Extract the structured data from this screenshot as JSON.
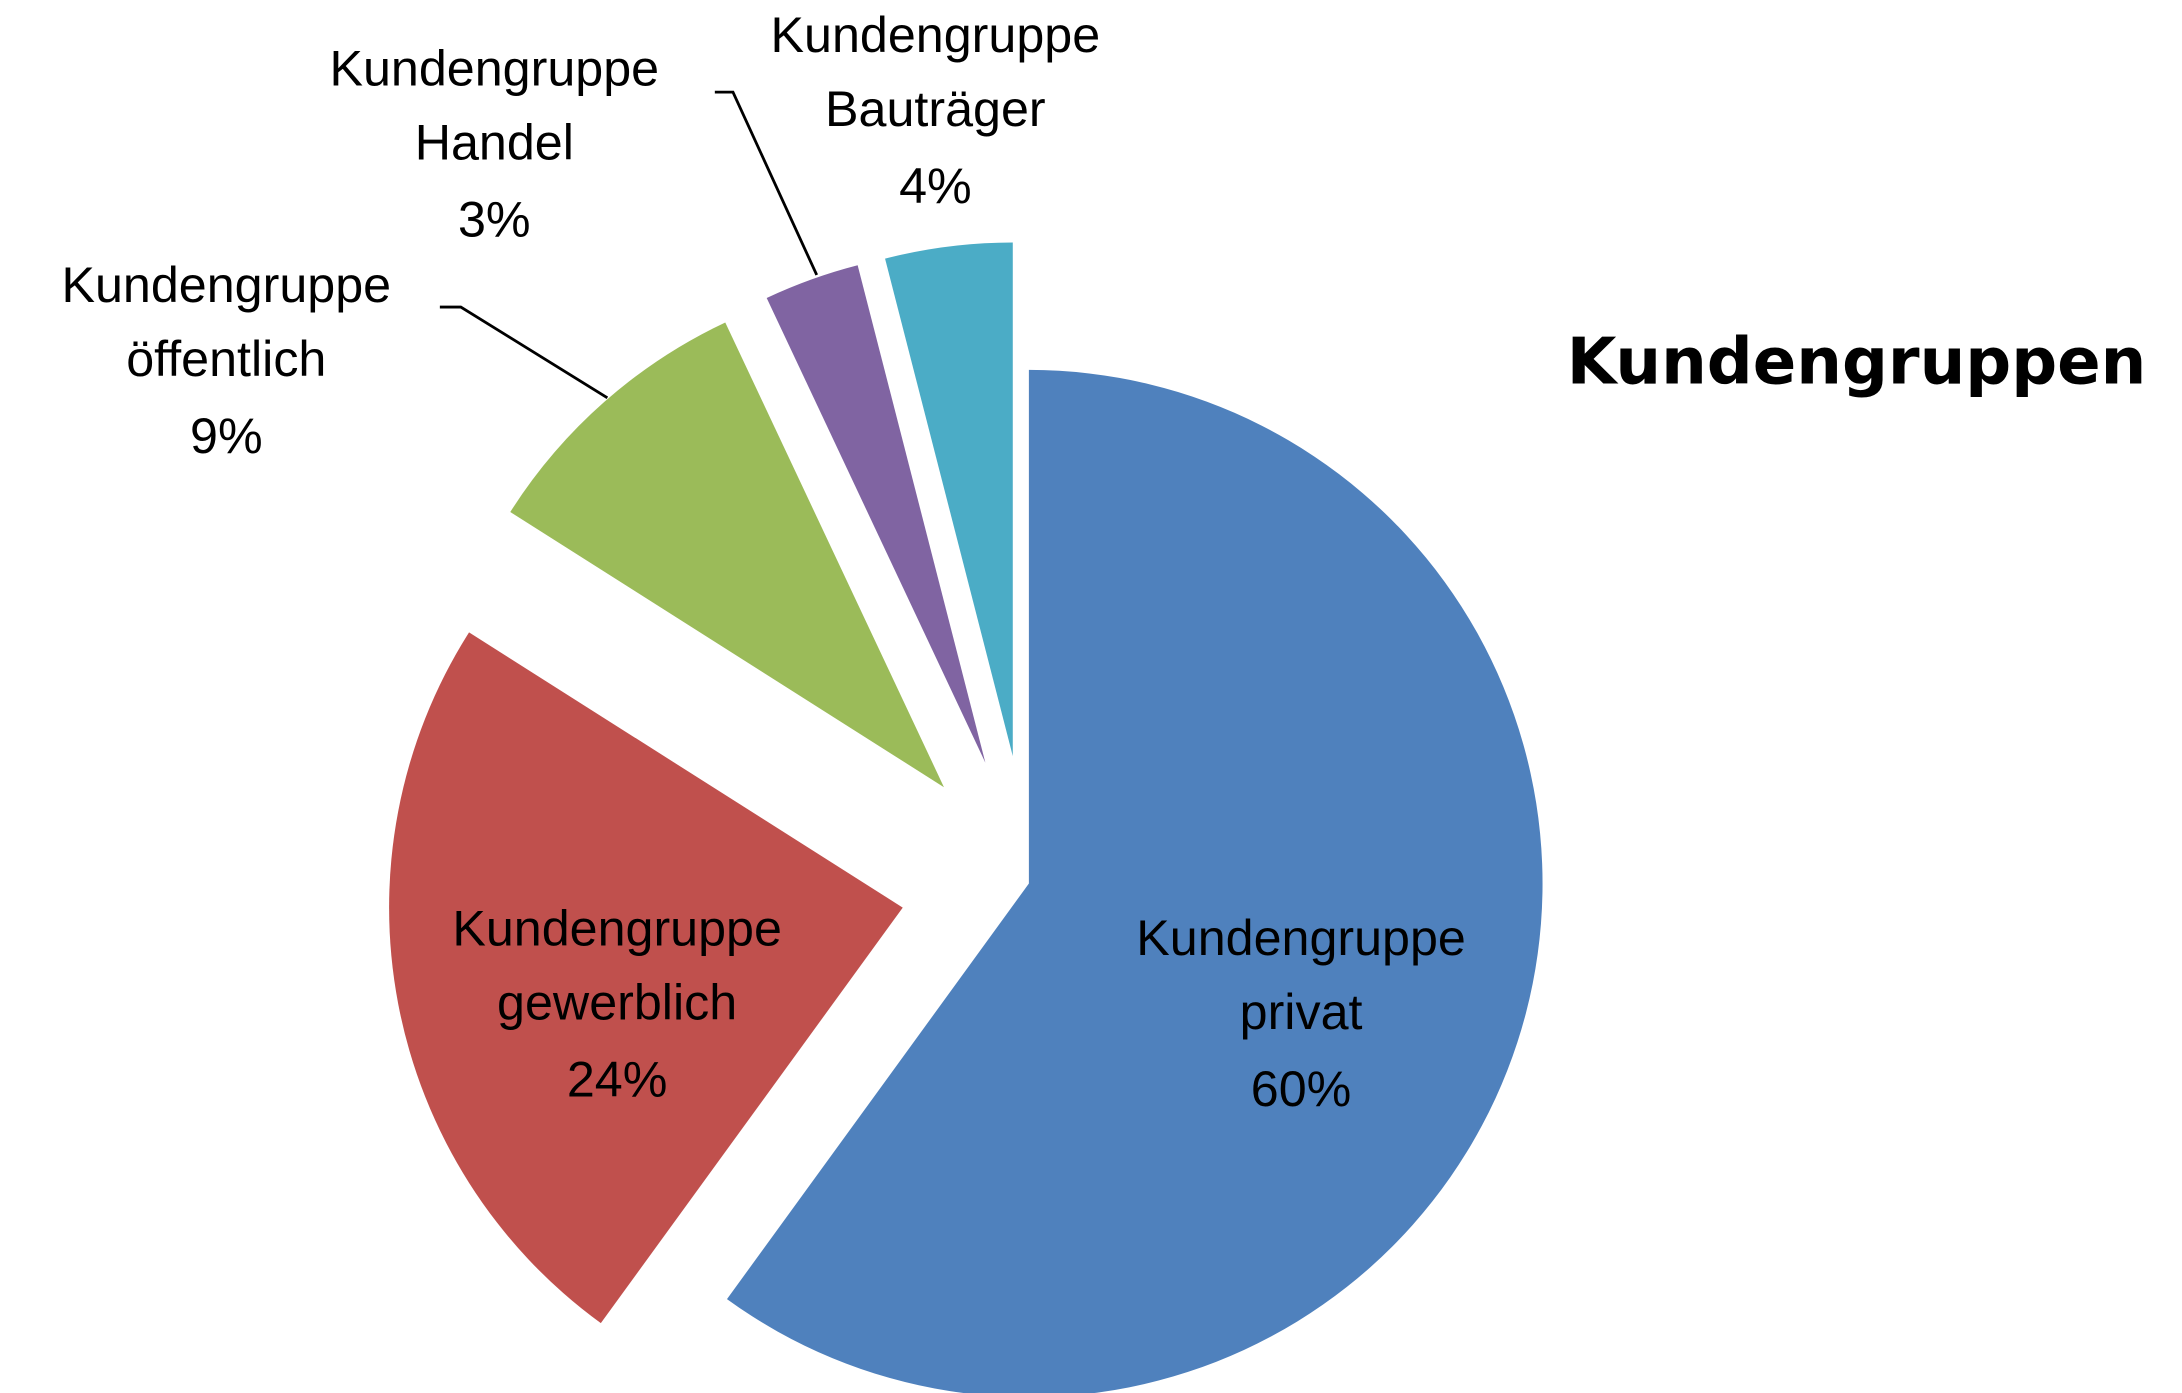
{
  "chart_data": {
    "type": "pie",
    "title": "Kundengruppen",
    "categories": [
      "Kundengruppe privat",
      "Kundengruppe gewerblich",
      "Kundengruppe öffentlich",
      "Kundengruppe Handel",
      "Kundengruppe Bauträger"
    ],
    "values": [
      60,
      24,
      9,
      3,
      4
    ],
    "value_labels": [
      "60%",
      "24%",
      "9%",
      "3%",
      "4%"
    ],
    "colors": [
      "#4f81bd",
      "#c0504d",
      "#9bbb59",
      "#8064a2",
      "#4bacc6"
    ]
  }
}
